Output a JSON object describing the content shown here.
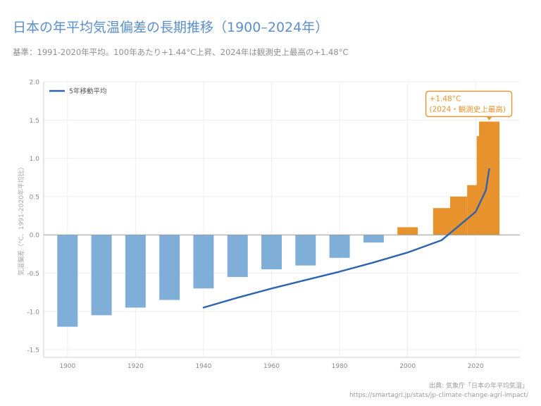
{
  "page": {
    "title": "日本の年平均気温偏差の長期推移（1900–2024年）",
    "subtitle": "基準：1991-2020年平均。100年あたり+1.44°C上昇、2024年は観測史上最高の+1.48°C",
    "source_line1": "出典: 気象庁「日本の年平均気温」",
    "source_line2": "https://smartagri.jp/stats/jp-climate-change-agri-impact/"
  },
  "colors": {
    "cool_bar": "#7fafd8",
    "warm_bar": "#e8922d",
    "line": "#2e64ad",
    "annotation": "#e8922d"
  },
  "chart_data": {
    "type": "bar",
    "ylabel": "気温偏差（°C、1991-2020年平均比）",
    "ylim": [
      -1.6,
      2.0
    ],
    "yticks": [
      -1.5,
      -1.0,
      -0.5,
      0.0,
      0.5,
      1.0,
      1.5,
      2.0
    ],
    "ytick_labels": [
      "-1.5",
      "-1.0",
      "-0.5",
      "0.0",
      "0.5",
      "1.0",
      "1.5",
      "2.0"
    ],
    "xlim": [
      1893,
      2033
    ],
    "xticks": [
      1900,
      1920,
      1940,
      1960,
      1980,
      2000,
      2020
    ],
    "xtick_labels": [
      "1900",
      "1920",
      "1940",
      "1960",
      "1980",
      "2000",
      "2020"
    ],
    "bars": [
      {
        "x": 1900,
        "width": 6,
        "value": -1.2
      },
      {
        "x": 1910,
        "width": 6,
        "value": -1.05
      },
      {
        "x": 1920,
        "width": 6,
        "value": -0.95
      },
      {
        "x": 1930,
        "width": 6,
        "value": -0.85
      },
      {
        "x": 1940,
        "width": 6,
        "value": -0.7
      },
      {
        "x": 1950,
        "width": 6,
        "value": -0.55
      },
      {
        "x": 1960,
        "width": 6,
        "value": -0.45
      },
      {
        "x": 1970,
        "width": 6,
        "value": -0.4
      },
      {
        "x": 1980,
        "width": 6,
        "value": -0.3
      },
      {
        "x": 1990,
        "width": 6,
        "value": -0.1
      },
      {
        "x": 2000,
        "width": 6,
        "value": 0.1
      },
      {
        "x": 2010,
        "width": 5,
        "value": 0.35
      },
      {
        "x": 2015,
        "width": 5,
        "value": 0.5
      },
      {
        "x": 2019,
        "width": 3,
        "value": 0.65
      },
      {
        "x": 2021,
        "width": 1.4,
        "value": 1.29
      },
      {
        "x": 2022,
        "width": 1.4,
        "value": 1.37
      },
      {
        "x": 2024,
        "width": 6,
        "value": 1.48
      }
    ],
    "series": [
      {
        "name": "5年移動平均",
        "type": "line",
        "x": [
          1940,
          1950,
          1960,
          1970,
          1980,
          1990,
          2000,
          2010,
          2020,
          2023,
          2024
        ],
        "values": [
          -0.95,
          -0.82,
          -0.7,
          -0.59,
          -0.48,
          -0.36,
          -0.23,
          -0.07,
          0.3,
          0.58,
          0.86
        ]
      }
    ],
    "legend": {
      "position": "top-left",
      "label": "5年移動平均"
    },
    "annotation": {
      "x": 2024,
      "value": 1.48,
      "line1": "+1.48°C",
      "line2": "(2024・観測史上最高)"
    },
    "grid": true
  }
}
